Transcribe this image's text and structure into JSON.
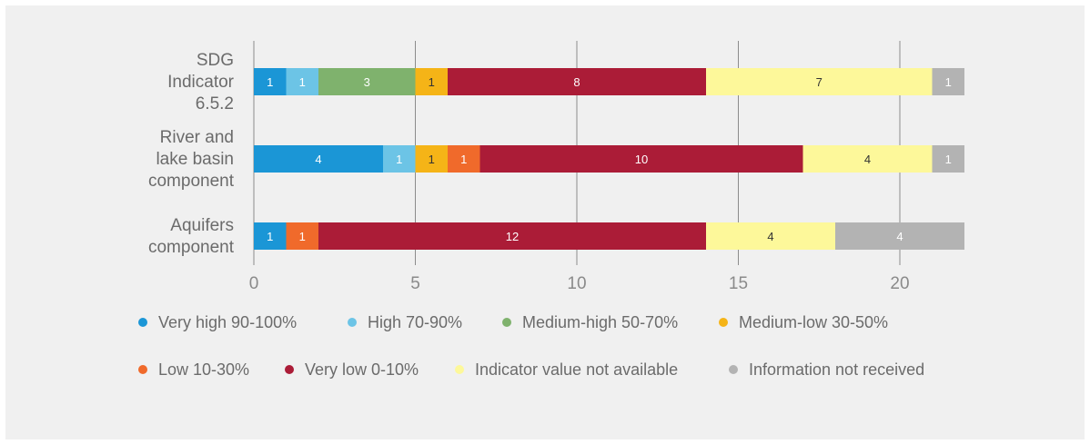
{
  "chart_data": {
    "type": "bar",
    "orientation": "horizontal",
    "stacked": true,
    "categories": [
      [
        "SDG",
        "Indicator",
        "6.5.2"
      ],
      [
        "River and",
        "lake basin",
        "component"
      ],
      [
        "Aquifers",
        "component"
      ]
    ],
    "series": [
      {
        "name": "Very high 90-100%",
        "color": "#1b96d6",
        "label_color": "#ffffff",
        "values": [
          1,
          4,
          1
        ]
      },
      {
        "name": "High 70-90%",
        "color": "#6cc4e6",
        "label_color": "#ffffff",
        "values": [
          1,
          1,
          0
        ]
      },
      {
        "name": "Medium-high 50-70%",
        "color": "#7fb26d",
        "label_color": "#ffffff",
        "values": [
          3,
          0,
          0
        ]
      },
      {
        "name": "Medium-low 30-50%",
        "color": "#f5b417",
        "label_color": "#333333",
        "values": [
          1,
          1,
          0
        ]
      },
      {
        "name": "Low 10-30%",
        "color": "#f06a2b",
        "label_color": "#ffffff",
        "values": [
          0,
          1,
          1
        ]
      },
      {
        "name": "Very low 0-10%",
        "color": "#ab1c37",
        "label_color": "#ffffff",
        "values": [
          8,
          10,
          12
        ]
      },
      {
        "name": "Indicator value not available",
        "color": "#fdf89a",
        "label_color": "#333333",
        "values": [
          7,
          4,
          4
        ]
      },
      {
        "name": "Information not received",
        "color": "#b3b3b3",
        "label_color": "#ffffff",
        "values": [
          1,
          1,
          4
        ]
      }
    ],
    "xlim": [
      0,
      22
    ],
    "xticks": [
      0,
      5,
      10,
      15,
      20
    ],
    "grid": "vertical",
    "legend_position": "bottom",
    "title": "",
    "xlabel": "",
    "ylabel": ""
  }
}
